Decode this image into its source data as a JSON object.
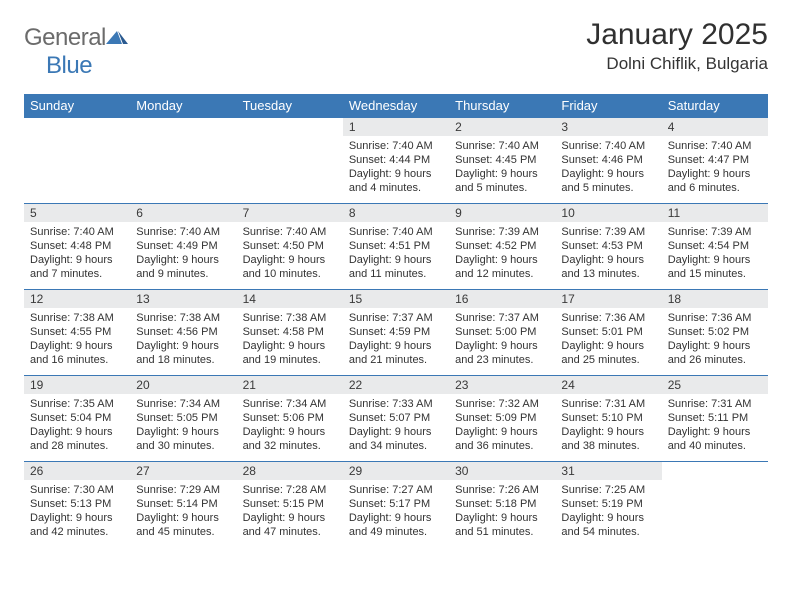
{
  "logo": {
    "general": "General",
    "blue": "Blue",
    "sail_color": "#3b78b5"
  },
  "title": "January 2025",
  "location": "Dolni Chiflik, Bulgaria",
  "header_bg": "#3b78b5",
  "header_text": "#ffffff",
  "daynum_bg": "#e9eaeb",
  "day_border": "#3b78b5",
  "weekdays": [
    "Sunday",
    "Monday",
    "Tuesday",
    "Wednesday",
    "Thursday",
    "Friday",
    "Saturday"
  ],
  "weeks": [
    [
      null,
      null,
      null,
      {
        "n": "1",
        "sr": "7:40 AM",
        "ss": "4:44 PM",
        "dl": "9 hours and 4 minutes."
      },
      {
        "n": "2",
        "sr": "7:40 AM",
        "ss": "4:45 PM",
        "dl": "9 hours and 5 minutes."
      },
      {
        "n": "3",
        "sr": "7:40 AM",
        "ss": "4:46 PM",
        "dl": "9 hours and 5 minutes."
      },
      {
        "n": "4",
        "sr": "7:40 AM",
        "ss": "4:47 PM",
        "dl": "9 hours and 6 minutes."
      }
    ],
    [
      {
        "n": "5",
        "sr": "7:40 AM",
        "ss": "4:48 PM",
        "dl": "9 hours and 7 minutes."
      },
      {
        "n": "6",
        "sr": "7:40 AM",
        "ss": "4:49 PM",
        "dl": "9 hours and 9 minutes."
      },
      {
        "n": "7",
        "sr": "7:40 AM",
        "ss": "4:50 PM",
        "dl": "9 hours and 10 minutes."
      },
      {
        "n": "8",
        "sr": "7:40 AM",
        "ss": "4:51 PM",
        "dl": "9 hours and 11 minutes."
      },
      {
        "n": "9",
        "sr": "7:39 AM",
        "ss": "4:52 PM",
        "dl": "9 hours and 12 minutes."
      },
      {
        "n": "10",
        "sr": "7:39 AM",
        "ss": "4:53 PM",
        "dl": "9 hours and 13 minutes."
      },
      {
        "n": "11",
        "sr": "7:39 AM",
        "ss": "4:54 PM",
        "dl": "9 hours and 15 minutes."
      }
    ],
    [
      {
        "n": "12",
        "sr": "7:38 AM",
        "ss": "4:55 PM",
        "dl": "9 hours and 16 minutes."
      },
      {
        "n": "13",
        "sr": "7:38 AM",
        "ss": "4:56 PM",
        "dl": "9 hours and 18 minutes."
      },
      {
        "n": "14",
        "sr": "7:38 AM",
        "ss": "4:58 PM",
        "dl": "9 hours and 19 minutes."
      },
      {
        "n": "15",
        "sr": "7:37 AM",
        "ss": "4:59 PM",
        "dl": "9 hours and 21 minutes."
      },
      {
        "n": "16",
        "sr": "7:37 AM",
        "ss": "5:00 PM",
        "dl": "9 hours and 23 minutes."
      },
      {
        "n": "17",
        "sr": "7:36 AM",
        "ss": "5:01 PM",
        "dl": "9 hours and 25 minutes."
      },
      {
        "n": "18",
        "sr": "7:36 AM",
        "ss": "5:02 PM",
        "dl": "9 hours and 26 minutes."
      }
    ],
    [
      {
        "n": "19",
        "sr": "7:35 AM",
        "ss": "5:04 PM",
        "dl": "9 hours and 28 minutes."
      },
      {
        "n": "20",
        "sr": "7:34 AM",
        "ss": "5:05 PM",
        "dl": "9 hours and 30 minutes."
      },
      {
        "n": "21",
        "sr": "7:34 AM",
        "ss": "5:06 PM",
        "dl": "9 hours and 32 minutes."
      },
      {
        "n": "22",
        "sr": "7:33 AM",
        "ss": "5:07 PM",
        "dl": "9 hours and 34 minutes."
      },
      {
        "n": "23",
        "sr": "7:32 AM",
        "ss": "5:09 PM",
        "dl": "9 hours and 36 minutes."
      },
      {
        "n": "24",
        "sr": "7:31 AM",
        "ss": "5:10 PM",
        "dl": "9 hours and 38 minutes."
      },
      {
        "n": "25",
        "sr": "7:31 AM",
        "ss": "5:11 PM",
        "dl": "9 hours and 40 minutes."
      }
    ],
    [
      {
        "n": "26",
        "sr": "7:30 AM",
        "ss": "5:13 PM",
        "dl": "9 hours and 42 minutes."
      },
      {
        "n": "27",
        "sr": "7:29 AM",
        "ss": "5:14 PM",
        "dl": "9 hours and 45 minutes."
      },
      {
        "n": "28",
        "sr": "7:28 AM",
        "ss": "5:15 PM",
        "dl": "9 hours and 47 minutes."
      },
      {
        "n": "29",
        "sr": "7:27 AM",
        "ss": "5:17 PM",
        "dl": "9 hours and 49 minutes."
      },
      {
        "n": "30",
        "sr": "7:26 AM",
        "ss": "5:18 PM",
        "dl": "9 hours and 51 minutes."
      },
      {
        "n": "31",
        "sr": "7:25 AM",
        "ss": "5:19 PM",
        "dl": "9 hours and 54 minutes."
      },
      null
    ]
  ],
  "labels": {
    "sunrise": "Sunrise:",
    "sunset": "Sunset:",
    "daylight": "Daylight:"
  }
}
